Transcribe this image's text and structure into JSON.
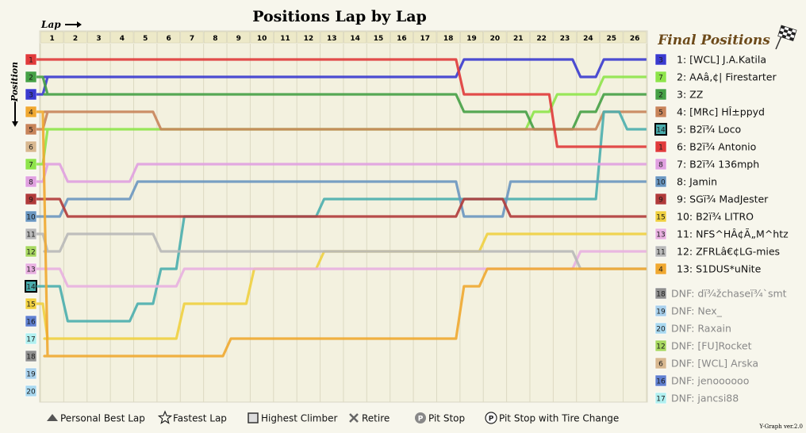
{
  "chart_data": {
    "type": "line",
    "title": "Positions Lap by Lap",
    "xlabel": "Lap",
    "ylabel": "Position",
    "laps": [
      1,
      2,
      3,
      4,
      5,
      6,
      7,
      8,
      9,
      10,
      11,
      12,
      13,
      14,
      15,
      16,
      17,
      18,
      19,
      20,
      21,
      22,
      23,
      24,
      25,
      26
    ],
    "positions_axis": [
      1,
      2,
      3,
      4,
      5,
      6,
      7,
      8,
      9,
      10,
      11,
      12,
      13,
      14,
      15,
      16,
      17,
      18,
      19,
      20
    ],
    "highlight_start_position": 14,
    "final_positions_title": "Final Positions",
    "series": [
      {
        "name": "[WCL] J.A.Katila",
        "final": "1: [WCL] J.A.Katila",
        "start": 3,
        "color": "#3a3acf",
        "positions": [
          2,
          2,
          2,
          2,
          2,
          2,
          2,
          2,
          2,
          2,
          2,
          2,
          2,
          2,
          2,
          2,
          2,
          2,
          1,
          1,
          1,
          1,
          1,
          2,
          1,
          1
        ]
      },
      {
        "name": "AAâ‚¢| Firestarter",
        "final": "2: AAâ‚¢| Firestarter",
        "start": 7,
        "color": "#8ee44a",
        "positions": [
          5,
          5,
          5,
          5,
          5,
          5,
          5,
          5,
          5,
          5,
          5,
          5,
          5,
          5,
          5,
          5,
          5,
          5,
          5,
          5,
          5,
          4,
          3,
          3,
          2,
          2
        ]
      },
      {
        "name": "ZZ",
        "final": "3: ZZ",
        "start": 2,
        "color": "#45a045",
        "positions": [
          3,
          3,
          3,
          3,
          3,
          3,
          3,
          3,
          3,
          3,
          3,
          3,
          3,
          3,
          3,
          3,
          3,
          3,
          4,
          4,
          4,
          5,
          5,
          4,
          3,
          3
        ]
      },
      {
        "name": "[MRc] HÎ±ppyd",
        "final": "4: [MRc] HÎ±ppyd",
        "start": 5,
        "color": "#c8845a",
        "positions": [
          4,
          4,
          4,
          4,
          4,
          5,
          5,
          5,
          5,
          5,
          5,
          5,
          5,
          5,
          5,
          5,
          5,
          5,
          5,
          5,
          5,
          5,
          5,
          5,
          4,
          4
        ]
      },
      {
        "name": "B2ï¾ Loco",
        "final": "5: B2ï¾ Loco",
        "start": 14,
        "color": "#4aaeae",
        "positions": [
          14,
          16,
          16,
          16,
          15,
          13,
          10,
          10,
          10,
          10,
          10,
          10,
          9,
          9,
          9,
          9,
          9,
          9,
          9,
          9,
          9,
          9,
          9,
          9,
          4,
          5
        ]
      },
      {
        "name": "B2ï¾ Antonio",
        "final": "6: B2ï¾ Antonio",
        "start": 1,
        "color": "#e03a3a",
        "positions": [
          1,
          1,
          1,
          1,
          1,
          1,
          1,
          1,
          1,
          1,
          1,
          1,
          1,
          1,
          1,
          1,
          1,
          1,
          3,
          3,
          3,
          3,
          6,
          6,
          6,
          6
        ]
      },
      {
        "name": "B2ï¾ 136mph",
        "final": "7: B2ï¾ 136mph",
        "start": 8,
        "color": "#e0a0e0",
        "positions": [
          7,
          8,
          8,
          8,
          7,
          7,
          7,
          7,
          7,
          7,
          7,
          7,
          7,
          7,
          7,
          7,
          7,
          7,
          7,
          7,
          7,
          7,
          7,
          7,
          7,
          7
        ]
      },
      {
        "name": "Jamin",
        "final": "8: Jamin",
        "start": 10,
        "color": "#6a96c0",
        "positions": [
          10,
          9,
          9,
          9,
          8,
          8,
          8,
          8,
          8,
          8,
          8,
          8,
          8,
          8,
          8,
          8,
          8,
          8,
          10,
          10,
          8,
          8,
          8,
          8,
          8,
          8
        ]
      },
      {
        "name": "SGï¾ MadJester",
        "final": "9: SGï¾ MadJester",
        "start": 9,
        "color": "#b03a3a",
        "positions": [
          9,
          10,
          10,
          10,
          10,
          10,
          10,
          10,
          10,
          10,
          10,
          10,
          10,
          10,
          10,
          10,
          10,
          10,
          9,
          9,
          10,
          10,
          10,
          10,
          10,
          10
        ]
      },
      {
        "name": "B2ï¾ LITRO",
        "final": "10: B2ï¾ LITRO",
        "start": 15,
        "color": "#f0d040",
        "positions": [
          17,
          17,
          17,
          17,
          17,
          17,
          15,
          15,
          15,
          13,
          13,
          13,
          12,
          12,
          12,
          12,
          12,
          12,
          12,
          11,
          11,
          11,
          11,
          11,
          11,
          11
        ]
      },
      {
        "name": "NFS^HÂ¢Ã„M^htz",
        "final": "11: NFS^HÂ¢Ã„M^htz",
        "start": 13,
        "color": "#e8b0e0",
        "positions": [
          13,
          14,
          14,
          14,
          14,
          14,
          13,
          13,
          13,
          13,
          13,
          13,
          13,
          13,
          13,
          13,
          13,
          13,
          13,
          13,
          13,
          13,
          13,
          12,
          12,
          12
        ]
      },
      {
        "name": "ZFRLâ€¢LG-mies",
        "final": "12: ZFRLâ€¢LG-mies",
        "start": 11,
        "color": "#b8b8b8",
        "positions": [
          12,
          11,
          11,
          11,
          11,
          12,
          12,
          12,
          12,
          12,
          12,
          12,
          12,
          12,
          12,
          12,
          12,
          12,
          12,
          12,
          12,
          12,
          12,
          13,
          13,
          13
        ]
      },
      {
        "name": "S1DUS*uNite",
        "final": "13: S1DUS*uNite",
        "start": 4,
        "color": "#f0a830",
        "positions": [
          18,
          18,
          18,
          18,
          18,
          18,
          18,
          18,
          17,
          17,
          17,
          17,
          17,
          17,
          17,
          17,
          17,
          17,
          14,
          13,
          13,
          13,
          13,
          13,
          13,
          13
        ]
      }
    ],
    "dnf": [
      {
        "label": "DNF: dï¾žchaseï¾`smt",
        "start": 18,
        "color": "#909090"
      },
      {
        "label": "DNF: Nex_",
        "start": 19,
        "color": "#a8d0ec"
      },
      {
        "label": "DNF: Raxain",
        "start": 20,
        "color": "#a8d8f0"
      },
      {
        "label": "DNF: [FU]Rocket",
        "start": 12,
        "color": "#a8d860"
      },
      {
        "label": "DNF: [WCL] Arska",
        "start": 6,
        "color": "#d8b890"
      },
      {
        "label": "DNF: jenoooooo",
        "start": 16,
        "color": "#6080d0"
      },
      {
        "label": "DNF: jancsi88",
        "start": 17,
        "color": "#b0f0f0"
      }
    ],
    "legend": [
      "Personal Best Lap",
      "Fastest Lap",
      "Highest Climber",
      "Retire",
      "Pit Stop",
      "Pit Stop with Tire Change"
    ],
    "version": "Y-Graph ver.2.0"
  }
}
